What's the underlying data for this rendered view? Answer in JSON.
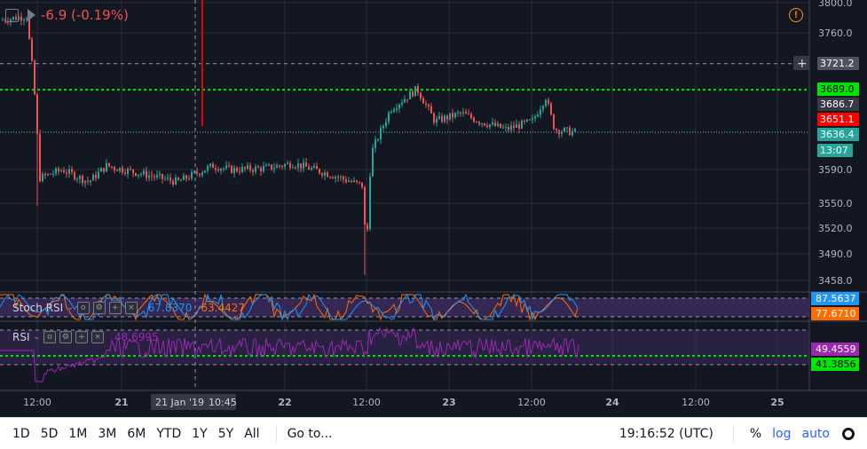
{
  "header": {
    "change_text": "-6.9 (-0.19%)",
    "icons": [
      "panel-icon",
      "flag-icon",
      "warning-icon"
    ]
  },
  "price_axis": {
    "ticks": [
      "3800.0",
      "3760.0",
      "3590.0",
      "3550.0",
      "3520.0",
      "3490.0",
      "3458.0"
    ],
    "labels": [
      {
        "text": "3721.2",
        "color": "#4c525e"
      },
      {
        "text": "3689.0",
        "color": "#00e600"
      },
      {
        "text": "3686.7",
        "color": "#363a45"
      },
      {
        "text": "3651.1",
        "color": "#ff0000"
      },
      {
        "text": "3636.4",
        "color": "#26a69a"
      },
      {
        "text": "13:07",
        "color": "#26a69a"
      }
    ],
    "crosshair_plus": "+"
  },
  "stoch_rsi": {
    "title": "Stoch RSI",
    "k_value": "67.8370",
    "d_value": "63.4427",
    "axis_labels": [
      {
        "text": "87.5637",
        "color": "#2196f3"
      },
      {
        "text": "77.6710",
        "color": "#ff6d00"
      }
    ]
  },
  "rsi": {
    "title": "RSI",
    "value": "48.6995",
    "axis_labels": [
      {
        "text": "49.4559",
        "color": "#9c27b0"
      },
      {
        "text": "41.3856",
        "color": "#00e600"
      }
    ]
  },
  "time_axis": {
    "ticks": [
      "12:00",
      "21",
      "22",
      "12:00",
      "23",
      "12:00",
      "24",
      "12:00",
      "25"
    ],
    "crosshair_date": "21 Jan '19",
    "crosshair_time": "10:45"
  },
  "toolbar": {
    "ranges": [
      "1D",
      "5D",
      "1M",
      "3M",
      "6M",
      "YTD",
      "1Y",
      "5Y",
      "All"
    ],
    "goto_label": "Go to...",
    "time_label": "19:16:52 (UTC)",
    "percent_label": "%",
    "log_label": "log",
    "auto_label": "auto"
  },
  "colors": {
    "background": "#131722",
    "up": "#26a69a",
    "down": "#ef5350",
    "green_line": "#00e600",
    "cyan_line": "#4dd0e1",
    "stoch_k": "#2196f3",
    "stoch_d": "#ff6d00",
    "rsi_line": "#9c27b0",
    "band_fill": "#3b2a5c"
  },
  "chart_data": {
    "type": "candlestick",
    "y_range": [
      3440,
      3800
    ],
    "price_lines": {
      "crosshair": 3721.2,
      "green_dashed": 3689.0,
      "last": 3636.4
    },
    "approx_close_path": [
      [
        0,
        3775
      ],
      [
        30,
        3780
      ],
      [
        38,
        3700
      ],
      [
        45,
        3580
      ],
      [
        70,
        3590
      ],
      [
        100,
        3575
      ],
      [
        120,
        3595
      ],
      [
        160,
        3585
      ],
      [
        200,
        3575
      ],
      [
        240,
        3595
      ],
      [
        260,
        3590
      ],
      [
        300,
        3592
      ],
      [
        330,
        3598
      ],
      [
        370,
        3585
      ],
      [
        410,
        3570
      ],
      [
        412,
        3470
      ],
      [
        418,
        3610
      ],
      [
        440,
        3665
      ],
      [
        470,
        3690
      ],
      [
        490,
        3650
      ],
      [
        520,
        3660
      ],
      [
        540,
        3650
      ],
      [
        570,
        3640
      ],
      [
        600,
        3650
      ],
      [
        615,
        3680
      ],
      [
        625,
        3640
      ],
      [
        650,
        3636
      ]
    ]
  }
}
